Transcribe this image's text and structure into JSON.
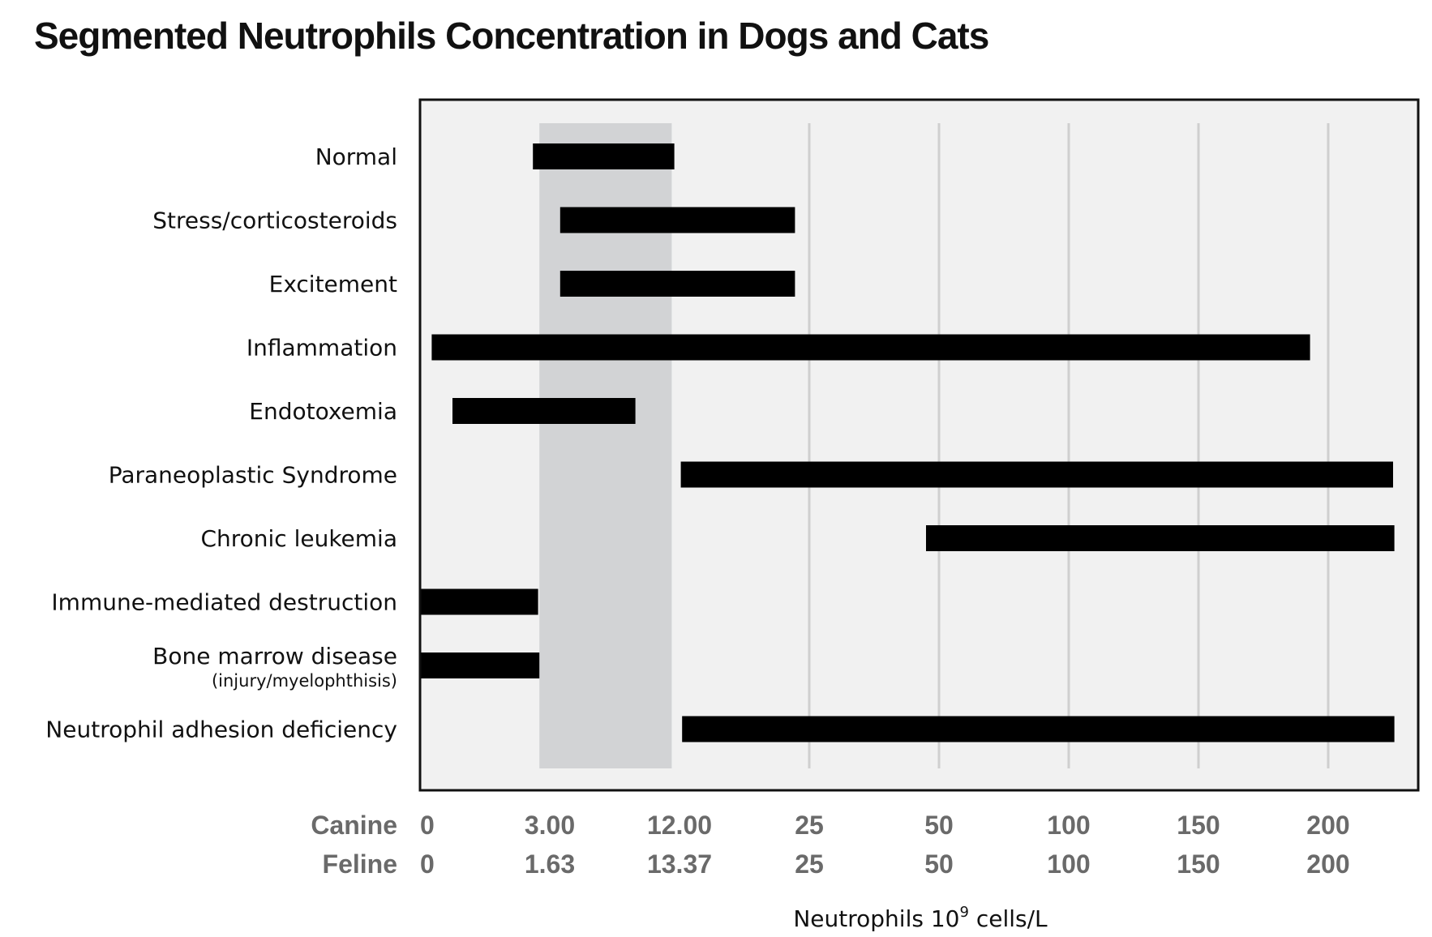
{
  "chart_data": {
    "type": "bar",
    "orientation": "horizontal-range",
    "title": "Segmented Neutrophils Concentration in Dogs and Cats",
    "xlabel": {
      "prefix": "Neutrophils 10",
      "superscript": "9",
      "suffix": " cells/L"
    },
    "axis_rows": [
      {
        "name": "Canine",
        "ticks": [
          "0",
          "3.00",
          "12.00",
          "25",
          "50",
          "100",
          "150",
          "200"
        ]
      },
      {
        "name": "Feline",
        "ticks": [
          "0",
          "1.63",
          "13.37",
          "25",
          "50",
          "100",
          "150",
          "200"
        ]
      }
    ],
    "tick_positions": [
      0,
      1,
      2,
      3,
      4,
      5,
      6,
      7
    ],
    "x_extent": [
      0,
      7.65
    ],
    "reference_band": [
      0.92,
      1.94
    ],
    "grid": true,
    "categories": [
      {
        "label": "Normal",
        "sub": "",
        "start": 0.87,
        "end": 1.96
      },
      {
        "label": "Stress/corticosteroids",
        "sub": "",
        "start": 1.08,
        "end": 2.89
      },
      {
        "label": "Excitement",
        "sub": "",
        "start": 1.08,
        "end": 2.89
      },
      {
        "label": "Inflammation",
        "sub": "",
        "start": 0.09,
        "end": 6.86
      },
      {
        "label": "Endotoxemia",
        "sub": "",
        "start": 0.25,
        "end": 1.66
      },
      {
        "label": "Paraneoplastic Syndrome",
        "sub": "",
        "start": 2.01,
        "end": 7.5
      },
      {
        "label": "Chronic leukemia",
        "sub": "",
        "start": 3.9,
        "end": 7.51
      },
      {
        "label": "Immune-mediated destruction",
        "sub": "",
        "start": 0,
        "end": 0.91
      },
      {
        "label": "Bone marrow disease",
        "sub": "(injury/myelophthisis)",
        "start": 0,
        "end": 0.92
      },
      {
        "label": "Neutrophil adhesion deficiency",
        "sub": "",
        "start": 2.02,
        "end": 7.51
      }
    ],
    "colors": {
      "bar": "#000000",
      "band": "#d2d3d5",
      "plot_bg": "#f1f1f1",
      "grid": "#cfcfcf",
      "frame": "#111111"
    }
  }
}
